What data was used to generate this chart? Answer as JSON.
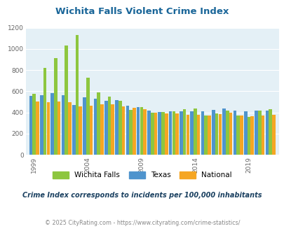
{
  "title": "Wichita Falls Violent Crime Index",
  "subtitle": "Crime Index corresponds to incidents per 100,000 inhabitants",
  "footer": "© 2025 CityRating.com - https://www.cityrating.com/crime-statistics/",
  "years": [
    1999,
    2000,
    2001,
    2002,
    2003,
    2004,
    2005,
    2006,
    2007,
    2008,
    2009,
    2010,
    2011,
    2012,
    2013,
    2014,
    2015,
    2016,
    2017,
    2018,
    2019,
    2020,
    2021
  ],
  "wichita_falls": [
    575,
    820,
    915,
    1035,
    1130,
    725,
    590,
    550,
    510,
    425,
    450,
    395,
    405,
    410,
    430,
    435,
    370,
    390,
    415,
    370,
    355,
    415,
    430
  ],
  "texas": [
    555,
    565,
    580,
    565,
    470,
    540,
    530,
    510,
    515,
    465,
    450,
    415,
    405,
    410,
    408,
    410,
    410,
    425,
    440,
    415,
    410,
    420,
    415
  ],
  "national": [
    505,
    495,
    500,
    495,
    455,
    465,
    475,
    475,
    455,
    445,
    430,
    400,
    390,
    388,
    375,
    375,
    370,
    385,
    395,
    370,
    365,
    370,
    380
  ],
  "wf_color": "#8dc63f",
  "tx_color": "#4f94cd",
  "nat_color": "#f5a623",
  "plot_bg": "#e4f0f6",
  "title_color": "#1a6699",
  "subtitle_color": "#1a4060",
  "footer_color": "#888888",
  "ylim": [
    0,
    1200
  ],
  "yticks": [
    0,
    200,
    400,
    600,
    800,
    1000,
    1200
  ],
  "xtick_years": [
    1999,
    2004,
    2009,
    2014,
    2019
  ]
}
